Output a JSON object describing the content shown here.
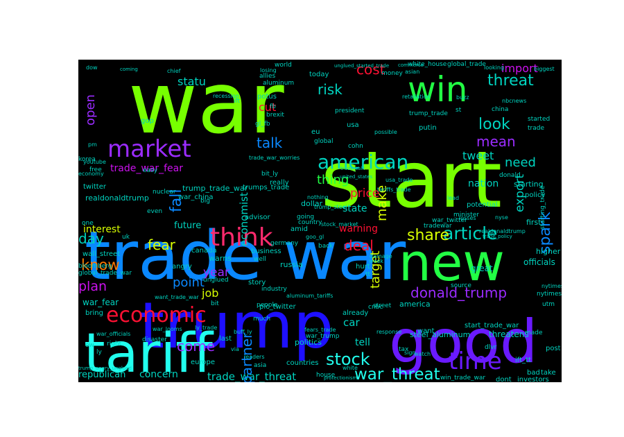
{
  "palette": {
    "lime": "#77ff00",
    "green": "#22ff44",
    "blue": "#0a88ff",
    "deep_blue": "#1e10ff",
    "purple": "#9b2cff",
    "violet": "#6a1aff",
    "magenta": "#cc11ee",
    "pink": "#ff2a6d",
    "red": "#ff1133",
    "orange": "#ff7a00",
    "yellow": "#d8ff00",
    "cyan": "#22ffee",
    "teal": "#00d4c0"
  },
  "words": [
    {
      "text": "war",
      "color": "lime"
    },
    {
      "text": "start",
      "color": "lime"
    },
    {
      "text": "trade war",
      "color": "blue"
    },
    {
      "text": "trump",
      "color": "deep_blue"
    },
    {
      "text": "new",
      "color": "green"
    },
    {
      "text": "good",
      "color": "violet"
    },
    {
      "text": "tariff",
      "color": "cyan"
    },
    {
      "text": "win",
      "color": "green"
    },
    {
      "text": "threat",
      "color": "teal"
    },
    {
      "text": "market",
      "color": "purple"
    },
    {
      "text": "think",
      "color": "pink"
    },
    {
      "text": "american",
      "color": "teal"
    },
    {
      "text": "economic",
      "color": "red"
    },
    {
      "text": "time",
      "color": "violet"
    },
    {
      "text": "cost",
      "color": "red"
    },
    {
      "text": "risk",
      "color": "teal"
    },
    {
      "text": "import",
      "color": "magenta"
    },
    {
      "text": "look",
      "color": "teal"
    },
    {
      "text": "mean",
      "color": "purple"
    },
    {
      "text": "talk",
      "color": "blue"
    },
    {
      "text": "thing",
      "color": "green"
    },
    {
      "text": "need",
      "color": "teal"
    },
    {
      "text": "tweet",
      "color": "teal"
    },
    {
      "text": "nation",
      "color": "teal"
    },
    {
      "text": "price",
      "color": "red"
    },
    {
      "text": "make",
      "color": "yellow"
    },
    {
      "text": "article",
      "color": "teal"
    },
    {
      "text": "spark",
      "color": "blue"
    },
    {
      "text": "share",
      "color": "yellow"
    },
    {
      "text": "deal",
      "color": "red"
    },
    {
      "text": "fear",
      "color": "yellow"
    },
    {
      "text": "day",
      "color": "teal"
    },
    {
      "text": "know",
      "color": "orange"
    },
    {
      "text": "plan",
      "color": "magenta"
    },
    {
      "text": "interest",
      "color": "yellow"
    },
    {
      "text": "come",
      "color": "purple"
    },
    {
      "text": "stock",
      "color": "cyan"
    },
    {
      "text": "war_threat",
      "color": "cyan"
    },
    {
      "text": "trade_war_threat",
      "color": "teal"
    },
    {
      "text": "donald_trump",
      "color": "purple"
    },
    {
      "text": "concern",
      "color": "teal"
    },
    {
      "text": "republican",
      "color": "teal"
    },
    {
      "text": "partner",
      "color": "blue"
    },
    {
      "text": "open",
      "color": "purple"
    },
    {
      "text": "statu",
      "color": "teal"
    },
    {
      "text": "economist",
      "color": "teal"
    },
    {
      "text": "state",
      "color": "teal"
    },
    {
      "text": "target",
      "color": "yellow"
    },
    {
      "text": "export",
      "color": "teal"
    },
    {
      "text": "car",
      "color": "teal"
    },
    {
      "text": "job",
      "color": "yellow"
    },
    {
      "text": "tell",
      "color": "teal"
    },
    {
      "text": "year",
      "color": "purple"
    },
    {
      "text": "point",
      "color": "blue"
    },
    {
      "text": "future",
      "color": "teal"
    },
    {
      "text": "trade_war_fear",
      "color": "magenta"
    },
    {
      "text": "war_fear",
      "color": "teal"
    },
    {
      "text": "cut",
      "color": "red"
    },
    {
      "text": "fall",
      "color": "blue"
    },
    {
      "text": "warning",
      "color": "red"
    },
    {
      "text": "realdonaldtrump",
      "color": "teal"
    },
    {
      "text": "trump_trade_war",
      "color": "teal"
    },
    {
      "text": "world",
      "color": "teal"
    },
    {
      "text": "potus",
      "color": "teal"
    },
    {
      "text": "china",
      "color": "teal"
    },
    {
      "text": "global_trade",
      "color": "teal"
    },
    {
      "text": "trump_trade",
      "color": "teal"
    },
    {
      "text": "white_house",
      "color": "teal"
    },
    {
      "text": "steel_aluminum",
      "color": "teal"
    },
    {
      "text": "start_trade_war",
      "color": "teal"
    },
    {
      "text": "global_trade_war",
      "color": "teal"
    },
    {
      "text": "wall_street",
      "color": "teal"
    },
    {
      "text": "pic_twitter",
      "color": "teal"
    },
    {
      "text": "threatens",
      "color": "teal"
    },
    {
      "text": "dollar",
      "color": "teal"
    },
    {
      "text": "officials",
      "color": "teal"
    },
    {
      "text": "canada",
      "color": "teal"
    },
    {
      "text": "europe",
      "color": "teal"
    },
    {
      "text": "politics",
      "color": "teal"
    },
    {
      "text": "countries",
      "color": "teal"
    },
    {
      "text": "investors",
      "color": "teal"
    },
    {
      "text": "dont",
      "color": "teal"
    },
    {
      "text": "win_trade_war",
      "color": "teal"
    },
    {
      "text": "bloomberg",
      "color": "teal"
    },
    {
      "text": "business",
      "color": "teal"
    },
    {
      "text": "america",
      "color": "teal"
    },
    {
      "text": "great",
      "color": "teal"
    },
    {
      "text": "higher",
      "color": "teal"
    },
    {
      "text": "twitter",
      "color": "teal"
    },
    {
      "text": "economy",
      "color": "teal"
    },
    {
      "text": "youtube",
      "color": "teal"
    },
    {
      "text": "advisor",
      "color": "teal"
    },
    {
      "text": "really",
      "color": "teal"
    },
    {
      "text": "gop",
      "color": "teal"
    },
    {
      "text": "usa",
      "color": "teal"
    },
    {
      "text": "money",
      "color": "teal"
    },
    {
      "text": "putin",
      "color": "teal"
    },
    {
      "text": "starting",
      "color": "teal"
    },
    {
      "text": "potential",
      "color": "teal"
    },
    {
      "text": "amid",
      "color": "teal"
    },
    {
      "text": "today",
      "color": "teal"
    },
    {
      "text": "warns",
      "color": "teal"
    },
    {
      "text": "angry",
      "color": "teal"
    },
    {
      "text": "story",
      "color": "teal"
    },
    {
      "text": "industry",
      "color": "teal"
    },
    {
      "text": "russia",
      "color": "teal"
    },
    {
      "text": "germany",
      "color": "teal"
    },
    {
      "text": "nytimes",
      "color": "teal"
    },
    {
      "text": "source",
      "color": "teal"
    },
    {
      "text": "post",
      "color": "teal"
    },
    {
      "text": "bad",
      "color": "teal"
    },
    {
      "text": "take",
      "color": "teal"
    },
    {
      "text": "first",
      "color": "teal"
    },
    {
      "text": "donald",
      "color": "teal"
    },
    {
      "text": "trade",
      "color": "teal"
    },
    {
      "text": "started",
      "color": "teal"
    },
    {
      "text": "policy",
      "color": "teal"
    },
    {
      "text": "tradewar",
      "color": "teal"
    },
    {
      "text": "minister",
      "color": "teal"
    },
    {
      "text": "hurt",
      "color": "teal"
    },
    {
      "text": "already",
      "color": "teal"
    },
    {
      "text": "want",
      "color": "teal"
    },
    {
      "text": "made",
      "color": "teal"
    },
    {
      "text": "tax",
      "color": "teal"
    },
    {
      "text": "house",
      "color": "teal"
    },
    {
      "text": "people",
      "color": "teal"
    },
    {
      "text": "much",
      "color": "teal"
    },
    {
      "text": "well",
      "color": "teal"
    },
    {
      "text": "back",
      "color": "teal"
    },
    {
      "text": "last",
      "color": "teal"
    },
    {
      "text": "asia",
      "color": "teal"
    },
    {
      "text": "right",
      "color": "teal"
    },
    {
      "text": "bring",
      "color": "teal"
    },
    {
      "text": "disaster",
      "color": "teal"
    },
    {
      "text": "retaliation",
      "color": "teal"
    },
    {
      "text": "nbcnews",
      "color": "teal"
    },
    {
      "text": "brexit",
      "color": "teal"
    },
    {
      "text": "recession",
      "color": "teal"
    },
    {
      "text": "allies",
      "color": "teal"
    },
    {
      "text": "aluminum",
      "color": "teal"
    },
    {
      "text": "coming",
      "color": "teal"
    },
    {
      "text": "chief",
      "color": "teal"
    },
    {
      "text": "dow",
      "color": "teal"
    },
    {
      "text": "easy",
      "color": "teal"
    },
    {
      "text": "nuclear",
      "color": "teal"
    },
    {
      "text": "big",
      "color": "teal"
    },
    {
      "text": "uk",
      "color": "teal"
    },
    {
      "text": "eu",
      "color": "teal"
    },
    {
      "text": "one",
      "color": "teal"
    },
    {
      "text": "even",
      "color": "teal"
    },
    {
      "text": "free",
      "color": "teal"
    },
    {
      "text": "korea",
      "color": "teal"
    },
    {
      "text": "cohn",
      "color": "teal"
    },
    {
      "text": "global",
      "color": "teal"
    },
    {
      "text": "going",
      "color": "teal"
    },
    {
      "text": "nothing",
      "color": "teal"
    },
    {
      "text": "country",
      "color": "teal"
    },
    {
      "text": "losses",
      "color": "teal"
    },
    {
      "text": "response",
      "color": "teal"
    },
    {
      "text": "white",
      "color": "teal"
    },
    {
      "text": "week",
      "color": "teal"
    },
    {
      "text": "cnbc",
      "color": "teal"
    },
    {
      "text": "dlvr",
      "color": "teal"
    },
    {
      "text": "ift_tt",
      "color": "teal"
    },
    {
      "text": "utm",
      "color": "teal"
    },
    {
      "text": "starting_trade",
      "color": "teal"
    },
    {
      "text": "war_twitter",
      "color": "teal"
    },
    {
      "text": "stock_market",
      "color": "teal"
    },
    {
      "text": "tariffs_trade",
      "color": "teal"
    },
    {
      "text": "unglued_started_trade",
      "color": "teal"
    },
    {
      "text": "united_states",
      "color": "teal"
    },
    {
      "text": "trumps_trade",
      "color": "teal"
    },
    {
      "text": "war_china",
      "color": "teal"
    },
    {
      "text": "goo_gl",
      "color": "teal"
    },
    {
      "text": "bit_ly",
      "color": "teal"
    },
    {
      "text": "war_officials",
      "color": "teal"
    },
    {
      "text": "war_looms",
      "color": "teal"
    },
    {
      "text": "war_trump",
      "color": "teal"
    },
    {
      "text": "trump_angry_unglued",
      "color": "teal"
    },
    {
      "text": "realdonaldtrump",
      "color": "teal"
    },
    {
      "text": "trade_war_worries",
      "color": "teal"
    },
    {
      "text": "fears_trade",
      "color": "teal"
    },
    {
      "text": "trump_steel",
      "color": "teal"
    },
    {
      "text": "aluminum_tariffs",
      "color": "teal"
    },
    {
      "text": "want_trade_war",
      "color": "teal"
    },
    {
      "text": "president",
      "color": "teal"
    },
    {
      "text": "protectionism",
      "color": "teal"
    },
    {
      "text": "buzz",
      "color": "teal"
    },
    {
      "text": "via",
      "color": "teal"
    },
    {
      "text": "pm",
      "color": "teal"
    },
    {
      "text": "tt",
      "color": "teal"
    },
    {
      "text": "fb",
      "color": "teal"
    },
    {
      "text": "ow",
      "color": "teal"
    },
    {
      "text": "ift",
      "color": "teal"
    },
    {
      "text": "ly",
      "color": "teal"
    },
    {
      "text": "st",
      "color": "teal"
    },
    {
      "text": "usa_trade",
      "color": "teal"
    },
    {
      "text": "nyse",
      "color": "teal"
    },
    {
      "text": "leaders",
      "color": "teal"
    },
    {
      "text": "possible",
      "color": "teal"
    },
    {
      "text": "street",
      "color": "teal"
    },
    {
      "text": "bit",
      "color": "teal"
    },
    {
      "text": "sign",
      "color": "teal"
    },
    {
      "text": "biggest",
      "color": "teal"
    },
    {
      "text": "watch",
      "color": "teal"
    },
    {
      "text": "asian",
      "color": "teal"
    },
    {
      "text": "damage",
      "color": "teal"
    },
    {
      "text": "trade_talk",
      "color": "teal"
    },
    {
      "text": "gl_fb",
      "color": "teal"
    },
    {
      "text": "unglued",
      "color": "teal"
    },
    {
      "text": "lead",
      "color": "teal"
    },
    {
      "text": "looking",
      "color": "teal"
    },
    {
      "text": "losing",
      "color": "teal"
    },
    {
      "text": "nytimes",
      "color": "teal"
    },
    {
      "text": "commerce",
      "color": "teal"
    },
    {
      "text": "buff_ly",
      "color": "teal"
    },
    {
      "text": "trade_policy",
      "color": "teal"
    },
    {
      "text": "ly_trade",
      "color": "teal"
    }
  ]
}
